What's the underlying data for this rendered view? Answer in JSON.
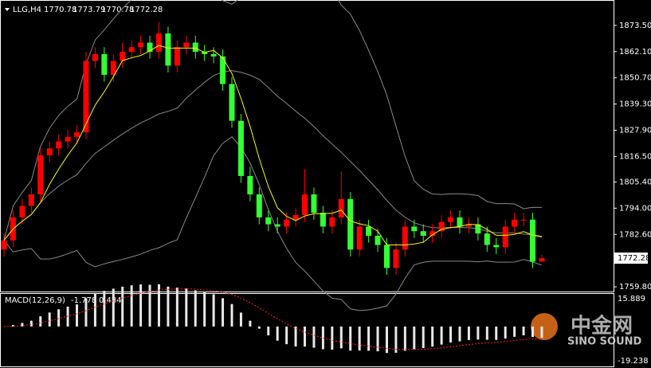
{
  "chart_data": {
    "type": "candlestick",
    "symbol": "LLG,H4",
    "up_color": "#ff0000",
    "down_color": "#33ff33",
    "candles": [
      [
        1776,
        1783,
        1773,
        1780
      ],
      [
        1780,
        1793,
        1777,
        1790
      ],
      [
        1790,
        1798,
        1787,
        1795
      ],
      [
        1795,
        1803,
        1792,
        1800
      ],
      [
        1800,
        1820,
        1797,
        1817
      ],
      [
        1817,
        1823,
        1814,
        1820
      ],
      [
        1820,
        1826,
        1817,
        1823
      ],
      [
        1823,
        1828,
        1820,
        1825
      ],
      [
        1825,
        1830,
        1822,
        1827
      ],
      [
        1827,
        1862,
        1824,
        1858
      ],
      [
        1858,
        1864,
        1855,
        1861
      ],
      [
        1861,
        1864,
        1849,
        1852
      ],
      [
        1852,
        1861,
        1849,
        1858
      ],
      [
        1858,
        1866,
        1855,
        1862
      ],
      [
        1862,
        1867,
        1859,
        1864
      ],
      [
        1864,
        1869,
        1861,
        1866
      ],
      [
        1866,
        1869,
        1859,
        1862
      ],
      [
        1862,
        1875,
        1859,
        1870
      ],
      [
        1870,
        1873,
        1853,
        1856
      ],
      [
        1856,
        1867,
        1853,
        1864
      ],
      [
        1864,
        1869,
        1861,
        1866
      ],
      [
        1866,
        1869,
        1859,
        1862
      ],
      [
        1862,
        1865,
        1858,
        1861
      ],
      [
        1861,
        1864,
        1857,
        1860
      ],
      [
        1860,
        1863,
        1845,
        1848
      ],
      [
        1848,
        1851,
        1829,
        1832
      ],
      [
        1832,
        1835,
        1805,
        1808
      ],
      [
        1808,
        1812,
        1797,
        1800
      ],
      [
        1800,
        1803,
        1787,
        1790
      ],
      [
        1790,
        1793,
        1784,
        1787
      ],
      [
        1787,
        1790,
        1783,
        1786
      ],
      [
        1786,
        1792,
        1783,
        1789
      ],
      [
        1789,
        1794,
        1786,
        1791
      ],
      [
        1791,
        1811,
        1788,
        1800
      ],
      [
        1800,
        1803,
        1789,
        1792
      ],
      [
        1792,
        1795,
        1783,
        1786
      ],
      [
        1786,
        1793,
        1783,
        1790
      ],
      [
        1790,
        1810,
        1787,
        1798
      ],
      [
        1798,
        1801,
        1773,
        1776
      ],
      [
        1776,
        1789,
        1773,
        1786
      ],
      [
        1786,
        1789,
        1779,
        1782
      ],
      [
        1782,
        1785,
        1775,
        1778
      ],
      [
        1778,
        1781,
        1765,
        1768
      ],
      [
        1768,
        1779,
        1765,
        1776
      ],
      [
        1776,
        1789,
        1773,
        1786
      ],
      [
        1786,
        1789,
        1781,
        1784
      ],
      [
        1784,
        1787,
        1779,
        1782
      ],
      [
        1782,
        1787,
        1779,
        1784
      ],
      [
        1784,
        1791,
        1781,
        1788
      ],
      [
        1788,
        1793,
        1785,
        1790
      ],
      [
        1790,
        1793,
        1783,
        1786
      ],
      [
        1786,
        1790,
        1783,
        1787
      ],
      [
        1787,
        1790,
        1780,
        1783
      ],
      [
        1783,
        1786,
        1775,
        1778
      ],
      [
        1778,
        1781,
        1774,
        1777
      ],
      [
        1777,
        1789,
        1774,
        1786
      ],
      [
        1786,
        1792,
        1783,
        1789
      ],
      [
        1789,
        1792,
        1786,
        1789
      ],
      [
        1789,
        1792,
        1768,
        1770.78
      ],
      [
        1770.78,
        1773.79,
        1770.78,
        1772.28
      ]
    ],
    "ylim": [
      1758.1,
      1882.8
    ],
    "yticks": [
      {
        "value": 1873.5,
        "label": "1873.50"
      },
      {
        "value": 1862.1,
        "label": "1862.10"
      },
      {
        "value": 1850.7,
        "label": "1850.70"
      },
      {
        "value": 1839.3,
        "label": "1839.30"
      },
      {
        "value": 1827.9,
        "label": "1827.90"
      },
      {
        "value": 1816.5,
        "label": "1816.50"
      },
      {
        "value": 1805.4,
        "label": "1805.40"
      },
      {
        "value": 1794,
        "label": "1794.00"
      },
      {
        "value": 1782.6,
        "label": "1782.60"
      },
      {
        "value": 1759.8,
        "label": "1759.80"
      }
    ],
    "macd": {
      "name": "MACD(12,26,9)",
      "main": -1.778,
      "signal": 0.484,
      "ylim": [
        -19.238,
        15.889
      ],
      "yticks": [
        15.889,
        -19.238
      ]
    },
    "watermark": {
      "logo": "中金网",
      "brand": "SINO SOUND"
    }
  }
}
